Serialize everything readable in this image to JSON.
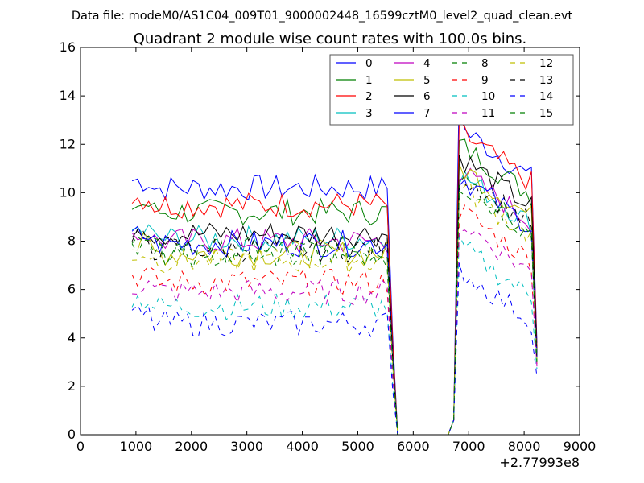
{
  "chart_data": {
    "type": "line",
    "suptitle": "Data file: modeM0/AS1C04_009T01_9000002448_16599cztM0_level2_quad_clean.evt",
    "title": "Quadrant 2 module wise count rates with 100.0s bins.",
    "xlabel": "",
    "ylabel": "",
    "x_offset_label": "+2.77993e8",
    "xlim": [
      0,
      9000
    ],
    "ylim": [
      0,
      16
    ],
    "xticks": [
      "0",
      "1000",
      "2000",
      "3000",
      "4000",
      "5000",
      "6000",
      "7000",
      "8000",
      "9000"
    ],
    "yticks": [
      "0",
      "2",
      "4",
      "6",
      "8",
      "10",
      "12",
      "14",
      "16"
    ],
    "grid": false,
    "legend": {
      "location": "top-right",
      "columns": 4
    },
    "segments": {
      "s1": {
        "start": 930,
        "end": 5530,
        "step": 100
      },
      "drop": [
        5630,
        5720
      ],
      "gap_x": [
        5730,
        6630
      ],
      "rise_x": [
        6730
      ],
      "s2": {
        "start": 6830,
        "end": 8130,
        "step": 100
      },
      "end_x": [
        8230
      ]
    },
    "series": [
      {
        "name": "0",
        "color": "#0000ff",
        "dash": "solid",
        "level1": 10.2,
        "level2": 11.5,
        "end": 3.8,
        "peak": 14.5
      },
      {
        "name": "1",
        "color": "#007f00",
        "dash": "solid",
        "level1": 9.2,
        "level2": 10.8,
        "end": 3.3
      },
      {
        "name": "2",
        "color": "#ff0000",
        "dash": "solid",
        "level1": 9.5,
        "level2": 11.3,
        "end": 3.6
      },
      {
        "name": "3",
        "color": "#00bfbf",
        "dash": "solid",
        "level1": 8.1,
        "level2": 9.6,
        "end": 3.1
      },
      {
        "name": "4",
        "color": "#bf00bf",
        "dash": "solid",
        "level1": 8.0,
        "level2": 9.7,
        "end": 3.2
      },
      {
        "name": "5",
        "color": "#bfbf00",
        "dash": "solid",
        "level1": 7.5,
        "level2": 9.9,
        "end": 3.0
      },
      {
        "name": "6",
        "color": "#000000",
        "dash": "solid",
        "level1": 8.3,
        "level2": 10.3,
        "end": 3.4
      },
      {
        "name": "7",
        "color": "#0000ff",
        "dash": "solid",
        "level1": 7.9,
        "level2": 9.5,
        "end": 3.2
      },
      {
        "name": "8",
        "color": "#007f00",
        "dash": "dashed",
        "level1": 7.6,
        "level2": 9.2,
        "end": 3.0
      },
      {
        "name": "9",
        "color": "#ff0000",
        "dash": "dashed",
        "level1": 6.3,
        "level2": 8.1,
        "end": 2.9
      },
      {
        "name": "10",
        "color": "#00bfbf",
        "dash": "dashed",
        "level1": 5.3,
        "level2": 6.6,
        "end": 2.7
      },
      {
        "name": "11",
        "color": "#bf00bf",
        "dash": "dashed",
        "level1": 5.9,
        "level2": 7.6,
        "end": 2.8
      },
      {
        "name": "12",
        "color": "#bfbf00",
        "dash": "dashed",
        "level1": 7.2,
        "level2": 9.1,
        "end": 3.0
      },
      {
        "name": "13",
        "color": "#000000",
        "dash": "dashed",
        "level1": 7.7,
        "level2": 9.6,
        "end": 3.1
      },
      {
        "name": "14",
        "color": "#0000ff",
        "dash": "dashed",
        "level1": 4.6,
        "level2": 5.6,
        "end": 2.4
      },
      {
        "name": "15",
        "color": "#007f00",
        "dash": "dashed",
        "level1": 7.4,
        "level2": 9.4,
        "end": 3.0
      }
    ]
  }
}
